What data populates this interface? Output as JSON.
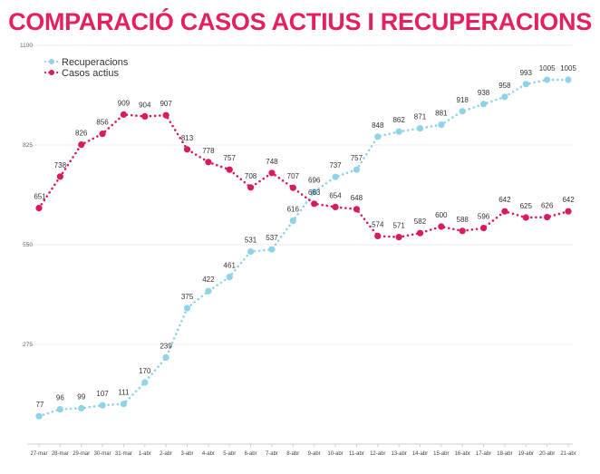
{
  "chart_data": {
    "type": "line",
    "title": "COMPARACIÓ CASOS ACTIUS I RECUPERACIONS",
    "xlabel": "",
    "ylabel": "",
    "categories": [
      "27-mar",
      "28-mar",
      "29-mar",
      "30-mar",
      "31-mar",
      "1-abr",
      "2-abr",
      "3-abr",
      "4-abr",
      "5-abr",
      "6-abr",
      "7-abr",
      "8-abr",
      "9-abr",
      "10-abr",
      "11-abr",
      "12-abr",
      "13-abr",
      "14-abr",
      "15-abr",
      "16-abr",
      "17-abr",
      "18-abr",
      "19-abr",
      "20-abr",
      "21-abr"
    ],
    "yticks": [
      275,
      550,
      825,
      1100
    ],
    "ylim": [
      0,
      1100
    ],
    "grid": true,
    "legend_position": "top-left",
    "series": [
      {
        "name": "Recuperacions",
        "color": "#8fd3ea",
        "values": [
          77,
          96,
          99,
          107,
          111,
          170,
          239,
          375,
          422,
          461,
          531,
          537,
          616,
          696,
          737,
          757,
          848,
          862,
          871,
          881,
          918,
          938,
          958,
          993,
          1005,
          1005
        ]
      },
      {
        "name": "Casos actius",
        "color": "#d81b60",
        "values": [
          651,
          738,
          826,
          856,
          909,
          904,
          907,
          813,
          778,
          757,
          708,
          748,
          707,
          663,
          654,
          648,
          574,
          571,
          582,
          600,
          588,
          596,
          642,
          625,
          626,
          642
        ]
      }
    ]
  }
}
